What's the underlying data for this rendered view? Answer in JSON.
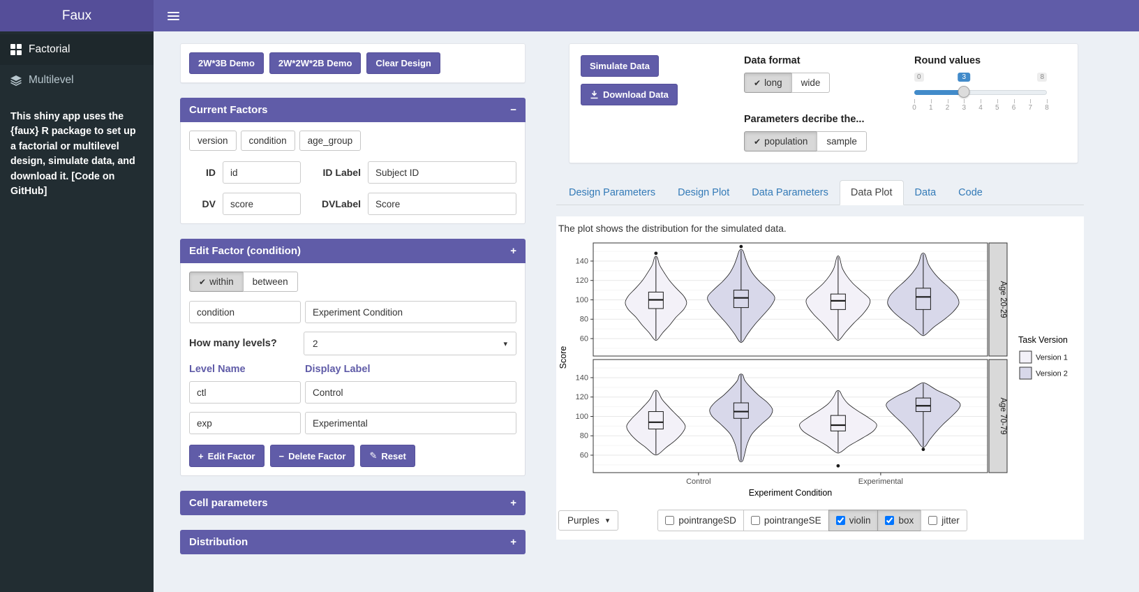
{
  "header": {
    "logo": "Faux"
  },
  "icons": {
    "check": "✔",
    "plus": "+",
    "minus": "−",
    "collapse_open": "−",
    "collapse_closed": "+",
    "reset": "✎",
    "caret": "▾"
  },
  "sidebar": {
    "items": [
      {
        "label": "Factorial"
      },
      {
        "label": "Multilevel"
      }
    ],
    "description": "This shiny app uses the {faux} R package to set up a factorial or multilevel design, simulate data, and download it.",
    "github_link": "[Code on GitHub]"
  },
  "design_panel": {
    "demo_buttons": [
      "2W*3B Demo",
      "2W*2W*2B Demo",
      "Clear Design"
    ],
    "current_factors": {
      "title": "Current Factors",
      "factor_chips": [
        "version",
        "condition",
        "age_group"
      ],
      "id_label": "ID",
      "id_value": "id",
      "id_label_label": "ID Label",
      "id_label_value": "Subject ID",
      "dv_label": "DV",
      "dv_value": "score",
      "dv_label_label": "DVLabel",
      "dv_label_value": "Score"
    },
    "edit_factor": {
      "title": "Edit Factor (condition)",
      "factor_type": {
        "options": [
          "within",
          "between"
        ],
        "selected": "within"
      },
      "name_value": "condition",
      "display_value": "Experiment Condition",
      "levels_question": "How many levels?",
      "levels_count": "2",
      "level_name_header": "Level Name",
      "display_label_header": "Display Label",
      "levels": [
        {
          "name": "ctl",
          "label": "Control"
        },
        {
          "name": "exp",
          "label": "Experimental"
        }
      ],
      "edit_button": "Edit Factor",
      "delete_button": "Delete Factor",
      "reset_button": "Reset"
    },
    "cell_parameters_title": "Cell parameters",
    "distribution_title": "Distribution"
  },
  "sim_panel": {
    "simulate_button": "Simulate Data",
    "download_button": "Download Data",
    "data_format": {
      "label": "Data format",
      "options": [
        "long",
        "wide"
      ],
      "selected": "long"
    },
    "parameters": {
      "label": "Parameters decribe the...",
      "options": [
        "population",
        "sample"
      ],
      "selected": "population"
    },
    "round_values": {
      "label": "Round values",
      "min": "0",
      "max": "8",
      "value": "3",
      "ticks": [
        "0",
        "1",
        "2",
        "3",
        "4",
        "5",
        "6",
        "7",
        "8"
      ]
    }
  },
  "tabs": [
    {
      "label": "Design Parameters",
      "active": false
    },
    {
      "label": "Design Plot",
      "active": false
    },
    {
      "label": "Data Parameters",
      "active": false
    },
    {
      "label": "Data Plot",
      "active": true
    },
    {
      "label": "Data",
      "active": false
    },
    {
      "label": "Code",
      "active": false
    }
  ],
  "plot_tab": {
    "note": "The plot shows the distribution for the simulated data.",
    "palette_button": "Purples",
    "plot_options": [
      {
        "label": "pointrangeSD",
        "checked": false
      },
      {
        "label": "pointrangeSE",
        "checked": false
      },
      {
        "label": "violin",
        "checked": true
      },
      {
        "label": "box",
        "checked": true
      },
      {
        "label": "jitter",
        "checked": false
      }
    ]
  },
  "chart_data": {
    "type": "violin+box",
    "xlabel": "Experiment Condition",
    "ylabel": "Score",
    "x_categories": [
      "Control",
      "Experimental"
    ],
    "facet_labels": [
      "Age 20-29",
      "Age 70-79"
    ],
    "y_ticks": [
      60,
      80,
      100,
      120,
      140
    ],
    "y_range": [
      42,
      158.7
    ],
    "grid": true,
    "legend": {
      "title": "Task Version",
      "position": "right",
      "entries": [
        {
          "label": "Version 1",
          "color": "#f3f1f8"
        },
        {
          "label": "Version 2",
          "color": "#d8d8ea"
        }
      ]
    },
    "violins": [
      {
        "facet": 0,
        "x": "Control",
        "version": "Version 1",
        "stats": {
          "lo": 59,
          "q1": 91,
          "median": 100,
          "q3": 108,
          "hi": 144
        },
        "outliers": [
          148
        ],
        "max_halfwidth": 44,
        "profile": [
          [
            59,
            0.05
          ],
          [
            66,
            0.22
          ],
          [
            74,
            0.45
          ],
          [
            82,
            0.65
          ],
          [
            90,
            0.9
          ],
          [
            97,
            1.0
          ],
          [
            104,
            0.9
          ],
          [
            112,
            0.66
          ],
          [
            120,
            0.44
          ],
          [
            128,
            0.27
          ],
          [
            136,
            0.12
          ],
          [
            144,
            0.04
          ]
        ]
      },
      {
        "facet": 0,
        "x": "Control",
        "version": "Version 2",
        "stats": {
          "lo": 57,
          "q1": 92,
          "median": 102,
          "q3": 110,
          "hi": 151
        },
        "outliers": [
          155
        ],
        "max_halfwidth": 48,
        "profile": [
          [
            57,
            0.05
          ],
          [
            65,
            0.2
          ],
          [
            75,
            0.42
          ],
          [
            85,
            0.68
          ],
          [
            95,
            0.92
          ],
          [
            103,
            1.0
          ],
          [
            111,
            0.8
          ],
          [
            119,
            0.55
          ],
          [
            127,
            0.35
          ],
          [
            135,
            0.22
          ],
          [
            143,
            0.13
          ],
          [
            151,
            0.05
          ]
        ]
      },
      {
        "facet": 0,
        "x": "Experimental",
        "version": "Version 1",
        "stats": {
          "lo": 59,
          "q1": 90,
          "median": 99,
          "q3": 106,
          "hi": 144
        },
        "outliers": [],
        "max_halfwidth": 45,
        "profile": [
          [
            59,
            0.05
          ],
          [
            67,
            0.25
          ],
          [
            76,
            0.5
          ],
          [
            85,
            0.78
          ],
          [
            94,
            0.98
          ],
          [
            101,
            1.0
          ],
          [
            109,
            0.74
          ],
          [
            117,
            0.47
          ],
          [
            125,
            0.27
          ],
          [
            133,
            0.13
          ],
          [
            144,
            0.04
          ]
        ]
      },
      {
        "facet": 0,
        "x": "Experimental",
        "version": "Version 2",
        "stats": {
          "lo": 64,
          "q1": 90,
          "median": 103,
          "q3": 112,
          "hi": 147
        },
        "outliers": [],
        "max_halfwidth": 51,
        "profile": [
          [
            64,
            0.06
          ],
          [
            72,
            0.3
          ],
          [
            80,
            0.6
          ],
          [
            88,
            0.85
          ],
          [
            96,
            1.0
          ],
          [
            104,
            0.94
          ],
          [
            112,
            0.74
          ],
          [
            120,
            0.5
          ],
          [
            128,
            0.3
          ],
          [
            137,
            0.14
          ],
          [
            147,
            0.05
          ]
        ]
      },
      {
        "facet": 1,
        "x": "Control",
        "version": "Version 1",
        "stats": {
          "lo": 61,
          "q1": 87,
          "median": 94,
          "q3": 105,
          "hi": 126
        },
        "outliers": [],
        "max_halfwidth": 42,
        "profile": [
          [
            61,
            0.08
          ],
          [
            68,
            0.35
          ],
          [
            75,
            0.65
          ],
          [
            83,
            0.9
          ],
          [
            90,
            1.0
          ],
          [
            97,
            0.85
          ],
          [
            104,
            0.62
          ],
          [
            111,
            0.4
          ],
          [
            118,
            0.2
          ],
          [
            126,
            0.06
          ]
        ]
      },
      {
        "facet": 1,
        "x": "Control",
        "version": "Version 2",
        "stats": {
          "lo": 54,
          "q1": 98,
          "median": 105,
          "q3": 114,
          "hi": 143
        },
        "outliers": [],
        "max_halfwidth": 45,
        "profile": [
          [
            54,
            0.05
          ],
          [
            62,
            0.12
          ],
          [
            72,
            0.2
          ],
          [
            82,
            0.35
          ],
          [
            92,
            0.65
          ],
          [
            100,
            0.92
          ],
          [
            107,
            1.0
          ],
          [
            114,
            0.85
          ],
          [
            122,
            0.55
          ],
          [
            130,
            0.3
          ],
          [
            137,
            0.12
          ],
          [
            143,
            0.05
          ]
        ]
      },
      {
        "facet": 1,
        "x": "Experimental",
        "version": "Version 1",
        "stats": {
          "lo": 63,
          "q1": 85,
          "median": 91,
          "q3": 101,
          "hi": 126
        },
        "outliers": [
          49
        ],
        "max_halfwidth": 55,
        "profile": [
          [
            63,
            0.06
          ],
          [
            70,
            0.3
          ],
          [
            78,
            0.65
          ],
          [
            85,
            0.92
          ],
          [
            92,
            1.0
          ],
          [
            99,
            0.78
          ],
          [
            106,
            0.5
          ],
          [
            113,
            0.26
          ],
          [
            120,
            0.12
          ],
          [
            126,
            0.04
          ]
        ]
      },
      {
        "facet": 1,
        "x": "Experimental",
        "version": "Version 2",
        "stats": {
          "lo": 69,
          "q1": 105,
          "median": 111,
          "q3": 119,
          "hi": 134
        },
        "outliers": [
          66
        ],
        "max_halfwidth": 52,
        "profile": [
          [
            69,
            0.05
          ],
          [
            76,
            0.18
          ],
          [
            84,
            0.35
          ],
          [
            92,
            0.55
          ],
          [
            100,
            0.78
          ],
          [
            108,
            0.98
          ],
          [
            114,
            1.0
          ],
          [
            121,
            0.72
          ],
          [
            127,
            0.38
          ],
          [
            134,
            0.07
          ]
        ]
      }
    ]
  }
}
